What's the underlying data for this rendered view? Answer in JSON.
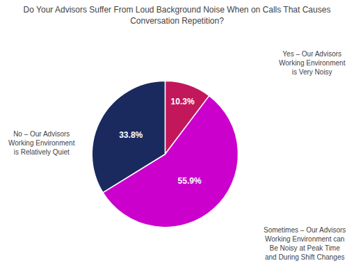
{
  "chart_data": {
    "type": "pie",
    "title": "Do Your Advisors Suffer From Loud Background Noise When on Calls That Causes\nConversation Repetition?",
    "categories": [
      "Yes – Our Advisors\nWorking Environment\nis Very Noisy",
      "Sometimes – Our Advisors\nWorking Environment can\nBe Noisy at Peak Time\nand During Shift Changes",
      "No – Our Advisors\nWorking Environment\nis Relatively Quiet"
    ],
    "values": [
      10.3,
      55.9,
      33.8
    ],
    "value_labels": [
      "10.3%",
      "55.9%",
      "33.8%"
    ],
    "colors": [
      "#c2185b",
      "#cc00cc",
      "#1a2a5e"
    ]
  }
}
